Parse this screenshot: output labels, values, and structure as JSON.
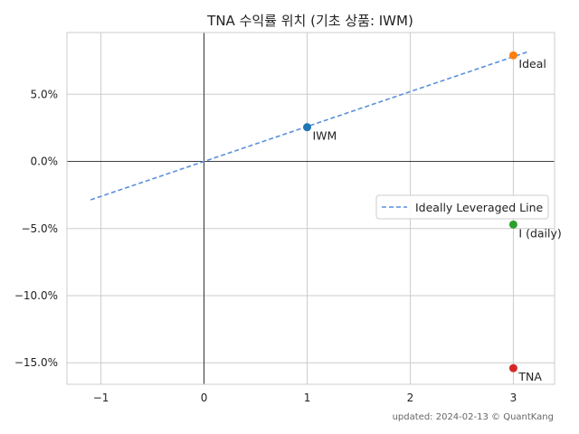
{
  "chart_data": {
    "type": "scatter",
    "title": "TNA 수익률 위치 (기초 상품: IWM)",
    "xlabel": "",
    "ylabel": "",
    "xlim": [
      -1.33,
      3.4
    ],
    "ylim": [
      -16.6,
      9.6
    ],
    "x_ticks": [
      -1,
      0,
      1,
      2,
      3
    ],
    "x_tick_labels": [
      "−1",
      "0",
      "1",
      "2",
      "3"
    ],
    "y_ticks": [
      5,
      0,
      -5,
      -10,
      -15
    ],
    "y_tick_labels": [
      "5.0%",
      "0.0%",
      "−5.0%",
      "−10.0%",
      "−15.0%"
    ],
    "grid": true,
    "points": [
      {
        "label": "IWM",
        "x": 1,
        "y": 2.55,
        "color": "#1f77b4"
      },
      {
        "label": "Ideal",
        "x": 3,
        "y": 7.9,
        "color": "#ff7f0e"
      },
      {
        "label": "I (daily)",
        "x": 3,
        "y": -4.7,
        "color": "#2ca02c"
      },
      {
        "label": "TNA",
        "x": 3,
        "y": -15.4,
        "color": "#d62728"
      }
    ],
    "ideal_line": {
      "name": "Ideally Leveraged Line",
      "slope": 2.6,
      "x_range": [
        -1.1,
        3.15
      ],
      "color": "#5a8fdc"
    },
    "legend": {
      "entries": [
        "Ideally Leveraged Line"
      ],
      "placement": "right"
    }
  },
  "footer": "updated: 2024-02-13 © QuantKang"
}
